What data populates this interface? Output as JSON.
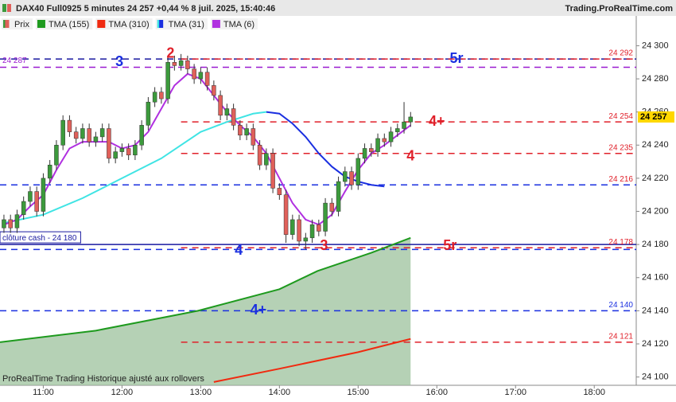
{
  "chart_data": {
    "type": "candlestick",
    "title": "DAX40 Full0925 5 minutes 24 257 +0,44 % 8 juil. 2025, 15:40:46",
    "source": "Trading.ProRealTime.com",
    "footer": "ProRealTime Trading  Historique ajusté aux rollovers",
    "xlim": [
      627,
      1112
    ],
    "ylim": [
      24095,
      24318
    ],
    "xticks": [
      {
        "value": 660,
        "label": "11:00"
      },
      {
        "value": 720,
        "label": "12:00"
      },
      {
        "value": 780,
        "label": "13:00"
      },
      {
        "value": 840,
        "label": "14:00"
      },
      {
        "value": 900,
        "label": "15:00"
      },
      {
        "value": 960,
        "label": "16:00"
      },
      {
        "value": 1020,
        "label": "17:00"
      },
      {
        "value": 1080,
        "label": "18:00"
      }
    ],
    "yticks": [
      {
        "value": 24100,
        "label": "24 100"
      },
      {
        "value": 24120,
        "label": "24 120"
      },
      {
        "value": 24140,
        "label": "24 140"
      },
      {
        "value": 24160,
        "label": "24 160"
      },
      {
        "value": 24180,
        "label": "24 180"
      },
      {
        "value": 24200,
        "label": "24 200"
      },
      {
        "value": 24220,
        "label": "24 220"
      },
      {
        "value": 24240,
        "label": "24 240"
      },
      {
        "value": 24260,
        "label": "24 260"
      },
      {
        "value": 24280,
        "label": "24 280"
      },
      {
        "value": 24300,
        "label": "24 300"
      }
    ],
    "candles": {
      "name": "Prix",
      "up_color": "#3c9a3c",
      "down_color": "#e0605a",
      "x": [
        630,
        635,
        640,
        645,
        650,
        655,
        660,
        665,
        670,
        675,
        680,
        685,
        690,
        695,
        700,
        705,
        710,
        715,
        720,
        725,
        730,
        735,
        740,
        745,
        750,
        755,
        760,
        765,
        770,
        775,
        780,
        785,
        790,
        795,
        800,
        805,
        810,
        815,
        820,
        825,
        830,
        835,
        840,
        845,
        850,
        855,
        860,
        865,
        870,
        875,
        880,
        885,
        890,
        895,
        900,
        905,
        910,
        915,
        920,
        925,
        930,
        935,
        940
      ],
      "open": [
        24190,
        24195,
        24190,
        24198,
        24206,
        24212,
        24200,
        24220,
        24228,
        24240,
        24255,
        24248,
        24244,
        24250,
        24242,
        24245,
        24250,
        24232,
        24236,
        24238,
        24234,
        24240,
        24252,
        24266,
        24272,
        24268,
        24290,
        24288,
        24291,
        24286,
        24280,
        24284,
        24276,
        24270,
        24258,
        24262,
        24252,
        24246,
        24250,
        24240,
        24228,
        24235,
        24214,
        24210,
        24186,
        24195,
        24182,
        24184,
        24192,
        24188,
        24205,
        24200,
        24218,
        24224,
        24216,
        24232,
        24238,
        24236,
        24244,
        24242,
        24248,
        24250,
        24254
      ],
      "high": [
        24198,
        24198,
        24201,
        24209,
        24215,
        24215,
        24223,
        24231,
        24243,
        24258,
        24258,
        24251,
        24253,
        24253,
        24248,
        24253,
        24253,
        24239,
        24241,
        24241,
        24243,
        24255,
        24269,
        24275,
        24275,
        24293,
        24294,
        24295,
        24294,
        24289,
        24287,
        24287,
        24279,
        24273,
        24265,
        24265,
        24255,
        24253,
        24253,
        24243,
        24238,
        24238,
        24217,
        24213,
        24198,
        24198,
        24187,
        24195,
        24195,
        24208,
        24208,
        24221,
        24227,
        24227,
        24235,
        24241,
        24241,
        24247,
        24247,
        24251,
        24253,
        24266,
        24260
      ],
      "low": [
        24187,
        24187,
        24187,
        24195,
        24203,
        24197,
        24197,
        24217,
        24225,
        24237,
        24245,
        24241,
        24241,
        24239,
        24239,
        24242,
        24229,
        24229,
        24233,
        24231,
        24231,
        24237,
        24249,
        24263,
        24265,
        24265,
        24285,
        24285,
        24283,
        24277,
        24277,
        24273,
        24267,
        24255,
        24255,
        24249,
        24243,
        24243,
        24237,
        24225,
        24225,
        24211,
        24207,
        24181,
        24183,
        24179,
        24177,
        24181,
        24185,
        24185,
        24197,
        24197,
        24215,
        24213,
        24213,
        24229,
        24233,
        24233,
        24239,
        24239,
        24245,
        24247,
        24251
      ],
      "close": [
        24195,
        24190,
        24198,
        24206,
        24212,
        24200,
        24220,
        24228,
        24240,
        24255,
        24248,
        24244,
        24250,
        24242,
        24245,
        24250,
        24232,
        24236,
        24238,
        24234,
        24240,
        24252,
        24266,
        24272,
        24268,
        24290,
        24288,
        24291,
        24286,
        24280,
        24284,
        24276,
        24270,
        24258,
        24262,
        24252,
        24246,
        24250,
        24240,
        24228,
        24235,
        24214,
        24210,
        24186,
        24195,
        24182,
        24184,
        24192,
        24188,
        24205,
        24200,
        24218,
        24224,
        24216,
        24232,
        24238,
        24236,
        24244,
        24242,
        24248,
        24250,
        24254,
        24257
      ]
    },
    "series": [
      {
        "name": "TMA (155)",
        "color": "#1e9a1e",
        "fill": "#9cc29c",
        "x": [
          627,
          700,
          778,
          840,
          869,
          910,
          940
        ],
        "values": [
          24121,
          24128,
          24140,
          24153,
          24164,
          24175,
          24184
        ]
      },
      {
        "name": "TMA (310)",
        "color": "#f02a10",
        "x": [
          790,
          840,
          900,
          940
        ],
        "values": [
          24097,
          24105,
          24115,
          24123
        ]
      },
      {
        "name": "TMA (31)",
        "color": "#1a2fe0",
        "rising_color": "#40e4e4",
        "x": [
          630,
          660,
          690,
          720,
          750,
          780,
          800,
          820,
          830,
          840,
          850,
          860,
          870,
          880,
          890,
          900,
          910,
          920
        ],
        "values": [
          24193,
          24198,
          24208,
          24220,
          24232,
          24248,
          24254,
          24259,
          24260,
          24259,
          24253,
          24245,
          24235,
          24227,
          24221,
          24218,
          24216,
          24215
        ]
      },
      {
        "name": "TMA (6)",
        "color": "#b030e0",
        "x": [
          630,
          640,
          650,
          660,
          670,
          680,
          690,
          700,
          710,
          720,
          730,
          740,
          750,
          760,
          770,
          780,
          790,
          800,
          810,
          820,
          830,
          840,
          850,
          860,
          870,
          880,
          890,
          900,
          910,
          920,
          930,
          940
        ],
        "values": [
          24192,
          24195,
          24203,
          24210,
          24225,
          24238,
          24242,
          24242,
          24242,
          24238,
          24240,
          24248,
          24262,
          24276,
          24283,
          24280,
          24270,
          24260,
          24252,
          24245,
          24235,
          24220,
          24205,
          24195,
          24192,
          24198,
          24212,
          24225,
          24235,
          24240,
          24246,
          24252
        ]
      }
    ],
    "levels": [
      {
        "value": 24292,
        "color": "#1a1aa0",
        "style": "dashed"
      },
      {
        "value": 24292,
        "label": "24 292",
        "color": "#e0202a",
        "style": "dashed",
        "from": 765,
        "side": "right"
      },
      {
        "value": 24287,
        "label": "24 287",
        "color": "#9a1ad0",
        "style": "dashed",
        "side": "left"
      },
      {
        "value": 24254,
        "label": "24 254",
        "color": "#e0202a",
        "style": "dashed",
        "from": 765,
        "side": "right"
      },
      {
        "value": 24235,
        "label": "24 235",
        "color": "#e0202a",
        "style": "dashed",
        "from": 765,
        "side": "right"
      },
      {
        "value": 24216,
        "label": "24 216",
        "color": "#1a2fe0",
        "label_color": "#e0202a",
        "style": "dashed",
        "side": "right"
      },
      {
        "value": 24180,
        "label": "clôture cash -  24 180",
        "color": "#1a1aa0",
        "style": "solid",
        "side": "left",
        "boxed": true
      },
      {
        "value": 24178,
        "label": "24 178",
        "color": "#e0202a",
        "style": "dashed",
        "from": 765,
        "side": "right"
      },
      {
        "value": 24177,
        "color": "#1a2fe0",
        "style": "dashed"
      },
      {
        "value": 24140,
        "label": "24 140",
        "color": "#1a2fe0",
        "style": "dashed",
        "side": "right"
      },
      {
        "value": 24121,
        "label": "24 121",
        "color": "#e0202a",
        "style": "dashed",
        "from": 765,
        "side": "right"
      }
    ],
    "annotations": [
      {
        "text": "2",
        "x": 757,
        "y": 24295,
        "color": "#e0202a"
      },
      {
        "text": "3",
        "x": 718,
        "y": 24290,
        "color": "#1a2fe0"
      },
      {
        "text": "5r",
        "x": 975,
        "y": 24292,
        "color": "#1a2fe0"
      },
      {
        "text": "4+",
        "x": 960,
        "y": 24254,
        "color": "#e0202a"
      },
      {
        "text": "4",
        "x": 940,
        "y": 24233,
        "color": "#e0202a"
      },
      {
        "text": "4",
        "x": 809,
        "y": 24176,
        "color": "#1a2fe0"
      },
      {
        "text": "3",
        "x": 874,
        "y": 24179,
        "color": "#e0202a"
      },
      {
        "text": "5r",
        "x": 970,
        "y": 24179,
        "color": "#e0202a"
      },
      {
        "text": "4+",
        "x": 824,
        "y": 24140,
        "color": "#1a2fe0"
      }
    ],
    "last": {
      "value": 24257,
      "label": "24 257",
      "color": "#ffd700"
    }
  }
}
